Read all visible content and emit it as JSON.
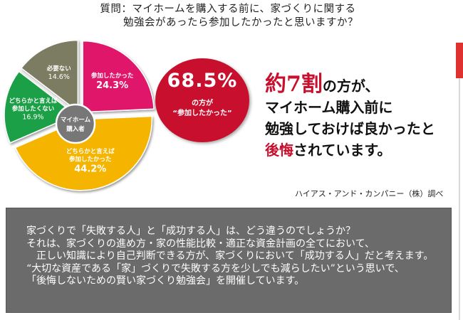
{
  "question": {
    "line1": "質問：マイホームを購入する前に、家づくりに関する",
    "line2": "勉強会があったら参加したかったと思いますか？"
  },
  "chart_data": {
    "type": "pie",
    "center_label": [
      "マイホーム",
      "購入者"
    ],
    "slices": [
      {
        "label": [
          "参加したかった"
        ],
        "value": 24.3,
        "value_text": "24.3%",
        "color": "#e0136a"
      },
      {
        "label": [
          "どちらかと言えば",
          "参加したかった"
        ],
        "value": 44.2,
        "value_text": "44.2%",
        "color": "#f5b400"
      },
      {
        "label": [
          "どちらかと言えば",
          "参加したくない"
        ],
        "value": 16.9,
        "value_text": "16.9%",
        "color": "#1fa046"
      },
      {
        "label": [
          "必要ない"
        ],
        "value": 14.6,
        "value_text": "14.6%",
        "color": "#7b7b63"
      }
    ]
  },
  "badge": {
    "percent": "68.5%",
    "text1": "の方が",
    "text2": "“参加したかった”"
  },
  "headline": {
    "big": "約7割",
    "rest1": "の方が、",
    "line2": "マイホーム購入前に",
    "line3": "勉強しておけば良かったと",
    "red3": "後悔",
    "rest3": "されています。"
  },
  "source": "ハイアス・アンド・カンパニー（株）調べ",
  "info": [
    "家づくりで「失敗する人」と「成功する人」は、どう違うのでしょうか？",
    "それは、家づくりの進め方・家の性能比較・適正な資金計画の全てにおいて、",
    "　正しい知識により自己判断できる方が、家づくりにおいて「成功する人」だと考えます。",
    "“大切な資産である「家」づくりで失敗する方を少しでも減らしたい”という思いで、",
    "「後悔しないための賢い家づくり勉強会」を開催しています。"
  ]
}
